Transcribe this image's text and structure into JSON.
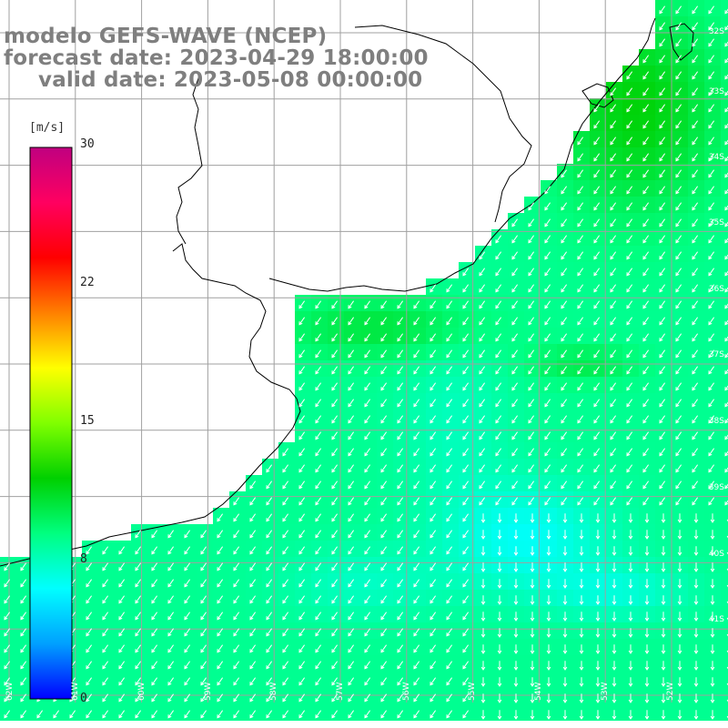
{
  "title": {
    "line1": "modelo GEFS-WAVE (NCEP)",
    "line2": "forecast date: 2023-04-29 18:00:00",
    "line3": "valid date: 2023-05-08 00:00:00"
  },
  "colorbar": {
    "unit": "[m/s]",
    "min": 0,
    "max": 30,
    "ticks": [
      "30",
      "22",
      "15",
      "8",
      "0"
    ],
    "tick_values": [
      30,
      22,
      15,
      8,
      0
    ],
    "stops": [
      "#0000ff",
      "#00a0ff",
      "#00ffff",
      "#00ff80",
      "#00d000",
      "#80ff00",
      "#ffff00",
      "#ff8000",
      "#ff0000",
      "#ff0060",
      "#c00080"
    ]
  },
  "map": {
    "lat_labels": [
      "32S",
      "33S",
      "34S",
      "35S",
      "36S",
      "37S",
      "38S",
      "39S",
      "40S",
      "41S"
    ],
    "lon_labels": [
      "62W",
      "61W",
      "60W",
      "59W",
      "58W",
      "57W",
      "56W",
      "55W",
      "54W",
      "53W",
      "52W"
    ],
    "colors": {
      "land": "#ffffff",
      "grid": "#a0a0a0",
      "coast": "#000000",
      "arrow": "#ffffff"
    }
  }
}
